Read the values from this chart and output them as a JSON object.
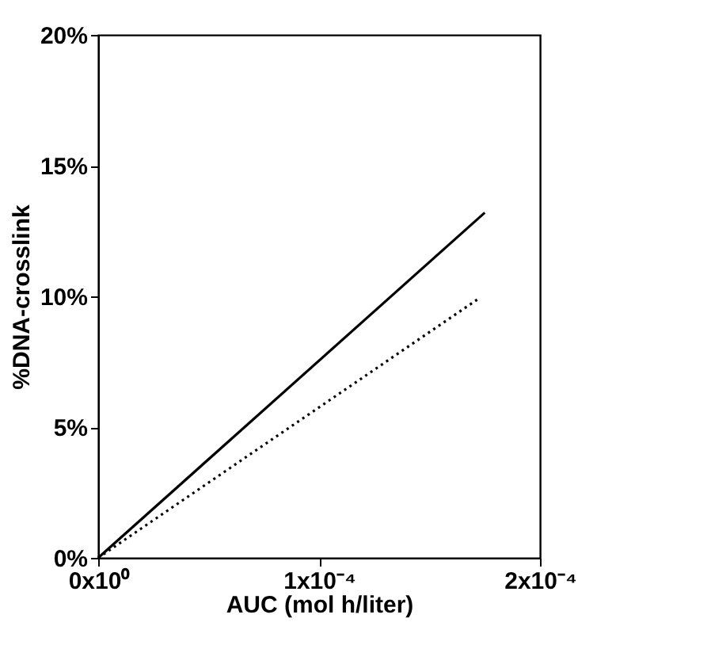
{
  "chart_data": {
    "type": "line",
    "xlabel": "AUC (mol h/liter)",
    "ylabel": "%DNA-crosslink",
    "xlim": [
      0,
      0.0002
    ],
    "xticks": [
      {
        "value": 0,
        "label": "0x10⁰"
      },
      {
        "value": 0.0001,
        "label": "1x10⁻⁴"
      },
      {
        "value": 0.0002,
        "label": "2x10⁻⁴"
      }
    ],
    "ylim": [
      0,
      20
    ],
    "yticks": [
      {
        "value": 0,
        "label": "0%"
      },
      {
        "value": 5,
        "label": "5%"
      },
      {
        "value": 10,
        "label": "10%"
      },
      {
        "value": 15,
        "label": "15%"
      },
      {
        "value": 20,
        "label": "20%"
      }
    ],
    "grid": false,
    "series": [
      {
        "color": "#000000",
        "line_style": "solid",
        "x": [
          0,
          0.000175
        ],
        "values": [
          0,
          13.2
        ]
      },
      {
        "color": "#000000",
        "line_style": "dotted",
        "x": [
          0,
          0.000172
        ],
        "values": [
          0,
          9.9
        ]
      }
    ]
  }
}
